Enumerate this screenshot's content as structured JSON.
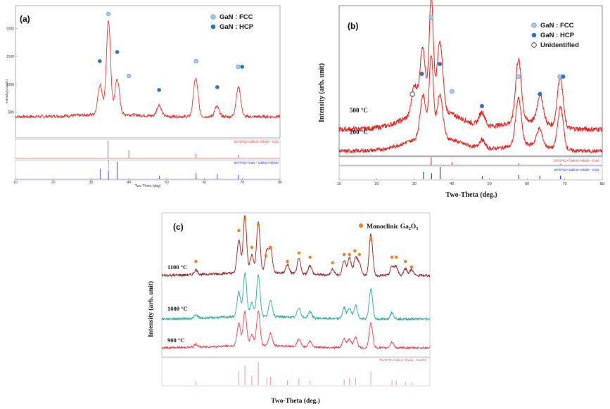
{
  "panels": {
    "a": {
      "label": "(a)",
      "header_text": "",
      "ylabel": "Intensity(Counts)",
      "xlabel": "Two-Theta (deg)",
      "y_ticks": [
        "500",
        "1000",
        "1500",
        "2000"
      ],
      "x_ticks": [
        "10",
        "20",
        "30",
        "40",
        "50",
        "60",
        "70",
        "80"
      ],
      "legend": [
        {
          "label": "GaN : FCC",
          "marker": "open-circle"
        },
        {
          "label": "GaN : HCP",
          "marker": "filled-circle"
        }
      ],
      "ref_labels": [
        "52-0791> Gallium Nitride - GaN",
        "50-0792> GaN - Gallium Nitride"
      ]
    },
    "b": {
      "label": "(b)",
      "ylabel": "Intensity (arb. unit)",
      "xlabel": "Two-Theta (deg.)",
      "x_ticks": [
        "10",
        "20",
        "30",
        "40",
        "50",
        "60",
        "70",
        "80"
      ],
      "series_labels": [
        "500 °C",
        "200 °C"
      ],
      "legend": [
        {
          "label": "GaN : FCC",
          "marker": "open-circle"
        },
        {
          "label": "GaN : HCP",
          "marker": "filled-circle"
        },
        {
          "label": "Unidentified",
          "marker": "hollow-circle"
        }
      ],
      "ref_labels": [
        "52-0791> Gallium Nitride - GaN",
        "50-0792> Gallium Nitride - GaN"
      ]
    },
    "c": {
      "label": "(c)",
      "ylabel": "Intensity (arb. unit)",
      "xlabel": "Two-Theta (deg.)",
      "series_labels": [
        "1100 °C",
        "1000 °C",
        "900 °C"
      ],
      "legend": [
        {
          "label_main": "Monoclinic Ga",
          "sub1": "2",
          "mid": "O",
          "sub2": "3",
          "marker": "orange-dot"
        }
      ],
      "ref_labels": [
        "76-0573> Gallium Oxide - Ga2O3"
      ]
    }
  },
  "colors": {
    "trace_red": "#e02020",
    "trace_darkred": "#8b1a1a",
    "trace_teal": "#2aa59a",
    "trace_pink": "#d9424a",
    "fcc_marker": "#a8c8ee",
    "hcp_marker": "#2f6fb8",
    "ga2o3_marker": "#f07b1d",
    "ref_red": "#e03030",
    "ref_blue": "#1a2ad0",
    "ref_pink": "#f0a0a8"
  },
  "chart_data": [
    {
      "type": "line",
      "panel": "a",
      "xlim": [
        10,
        80
      ],
      "ylim": [
        0,
        2200
      ],
      "x_axis_label": "Two-Theta (deg)",
      "y_axis_label": "Intensity(Counts)",
      "series": [
        {
          "peaks": [
            [
              32.4,
              950
            ],
            [
              34.6,
              2100
            ],
            [
              36.9,
              1050
            ],
            [
              48.0,
              620
            ],
            [
              57.7,
              1100
            ],
            [
              63.3,
              600
            ],
            [
              69.0,
              950
            ]
          ],
          "baseline": 420
        }
      ],
      "markers": [
        {
          "x": 34.6,
          "type": "fcc"
        },
        {
          "x": 32.3,
          "type": "hcp"
        },
        {
          "x": 36.9,
          "type": "hcp"
        },
        {
          "x": 40.0,
          "type": "fcc"
        },
        {
          "x": 48.0,
          "type": "hcp"
        },
        {
          "x": 57.8,
          "type": "fcc"
        },
        {
          "x": 63.4,
          "type": "hcp"
        },
        {
          "x": 68.9,
          "type": "fcc"
        },
        {
          "x": 70.0,
          "type": "hcp"
        }
      ],
      "references": [
        {
          "label": "52-0791> Gallium Nitride - GaN",
          "color": "red",
          "lines": [
            [
              34.5,
              1.0
            ],
            [
              40.0,
              0.45
            ],
            [
              57.8,
              0.25
            ],
            [
              69.0,
              0.2
            ]
          ]
        },
        {
          "label": "50-0792> GaN - Gallium Nitride",
          "color": "blue",
          "lines": [
            [
              32.4,
              0.6
            ],
            [
              34.6,
              0.45
            ],
            [
              36.9,
              1.0
            ],
            [
              48.1,
              0.2
            ],
            [
              57.8,
              0.35
            ],
            [
              63.4,
              0.3
            ],
            [
              68.9,
              0.25
            ]
          ]
        }
      ]
    },
    {
      "type": "line",
      "panel": "b",
      "xlim": [
        10,
        80
      ],
      "x_axis_label": "Two-Theta (deg.)",
      "y_axis_label": "Intensity (arb. unit)",
      "series": [
        {
          "name": "500 °C",
          "peaks": [
            [
              30.0,
              0.25
            ],
            [
              32.2,
              0.55
            ],
            [
              34.5,
              1.0
            ],
            [
              36.8,
              0.6
            ],
            [
              48.0,
              0.12
            ],
            [
              57.7,
              0.55
            ],
            [
              63.5,
              0.25
            ],
            [
              68.8,
              0.45
            ]
          ]
        },
        {
          "name": "200 °C",
          "peaks": [
            [
              32.3,
              0.5
            ],
            [
              34.5,
              0.95
            ],
            [
              36.8,
              0.5
            ],
            [
              48.0,
              0.1
            ],
            [
              57.7,
              0.55
            ],
            [
              63.3,
              0.2
            ],
            [
              68.9,
              0.5
            ]
          ]
        }
      ],
      "markers": [
        {
          "x": 34.5,
          "type": "fcc"
        },
        {
          "x": 32.0,
          "type": "hcp"
        },
        {
          "x": 36.8,
          "type": "hcp"
        },
        {
          "x": 29.5,
          "type": "unidentified"
        },
        {
          "x": 40.0,
          "type": "fcc"
        },
        {
          "x": 48.0,
          "type": "hcp"
        },
        {
          "x": 57.7,
          "type": "fcc"
        },
        {
          "x": 63.4,
          "type": "hcp"
        },
        {
          "x": 68.7,
          "type": "fcc"
        },
        {
          "x": 69.6,
          "type": "hcp"
        }
      ],
      "references": [
        {
          "label": "52-0791> Gallium Nitride - GaN",
          "color": "red",
          "lines": [
            [
              34.5,
              1.0
            ],
            [
              40.0,
              0.4
            ],
            [
              57.8,
              0.25
            ],
            [
              69.0,
              0.2
            ]
          ]
        },
        {
          "label": "50-0792> Gallium Nitride - GaN",
          "color": "blue",
          "lines": [
            [
              32.4,
              0.6
            ],
            [
              34.6,
              0.5
            ],
            [
              36.9,
              1.0
            ],
            [
              48.1,
              0.25
            ],
            [
              57.8,
              0.35
            ],
            [
              63.4,
              0.3
            ],
            [
              68.9,
              0.3
            ]
          ]
        }
      ]
    },
    {
      "type": "line",
      "panel": "c",
      "xlim": [
        10,
        80
      ],
      "x_axis_label": "Two-Theta (deg.)",
      "y_axis_label": "Intensity (arb. unit)",
      "series": [
        {
          "name": "1100 °C",
          "peaks": [
            [
              18.9,
              0.08
            ],
            [
              30.1,
              0.55
            ],
            [
              31.7,
              0.95
            ],
            [
              33.5,
              0.3
            ],
            [
              35.2,
              0.85
            ],
            [
              37.4,
              0.35
            ],
            [
              38.4,
              0.4
            ],
            [
              42.8,
              0.15
            ],
            [
              45.8,
              0.25
            ],
            [
              48.7,
              0.15
            ],
            [
              54.6,
              0.1
            ],
            [
              57.6,
              0.25
            ],
            [
              59.0,
              0.3
            ],
            [
              60.6,
              0.3
            ],
            [
              61.6,
              0.2
            ],
            [
              64.6,
              0.7
            ],
            [
              70.1,
              0.15
            ],
            [
              71.2,
              0.15
            ],
            [
              73.6,
              0.12
            ],
            [
              75.2,
              0.1
            ]
          ]
        },
        {
          "name": "1000 °C",
          "peaks": [
            [
              18.9,
              0.06
            ],
            [
              30.1,
              0.45
            ],
            [
              31.7,
              0.8
            ],
            [
              33.5,
              0.25
            ],
            [
              35.2,
              0.75
            ],
            [
              38.4,
              0.3
            ],
            [
              45.8,
              0.18
            ],
            [
              48.7,
              0.12
            ],
            [
              57.6,
              0.2
            ],
            [
              59.0,
              0.2
            ],
            [
              60.6,
              0.25
            ],
            [
              64.6,
              0.55
            ],
            [
              70.1,
              0.12
            ]
          ]
        },
        {
          "name": "900 °C",
          "peaks": [
            [
              18.9,
              0.06
            ],
            [
              30.1,
              0.45
            ],
            [
              31.7,
              0.7
            ],
            [
              33.5,
              0.22
            ],
            [
              35.2,
              0.7
            ],
            [
              38.4,
              0.25
            ],
            [
              45.8,
              0.15
            ],
            [
              48.7,
              0.12
            ],
            [
              57.6,
              0.18
            ],
            [
              59.0,
              0.18
            ],
            [
              60.6,
              0.22
            ],
            [
              64.6,
              0.5
            ],
            [
              70.1,
              0.12
            ]
          ]
        }
      ],
      "markers": [
        18.9,
        30.1,
        31.7,
        33.5,
        35.2,
        37.2,
        38.4,
        42.8,
        45.8,
        48.7,
        54.6,
        57.6,
        59.0,
        60.4,
        61.6,
        64.6,
        70.1,
        71.2,
        73.6,
        75.2
      ],
      "references": [
        {
          "label": "76-0573> Gallium Oxide - Ga2O3",
          "color": "pink",
          "lines": [
            [
              18.9,
              0.15
            ],
            [
              30.1,
              0.6
            ],
            [
              31.7,
              0.85
            ],
            [
              33.5,
              0.4
            ],
            [
              35.2,
              1.0
            ],
            [
              37.4,
              0.3
            ],
            [
              38.4,
              0.35
            ],
            [
              42.8,
              0.2
            ],
            [
              45.8,
              0.3
            ],
            [
              48.7,
              0.2
            ],
            [
              57.6,
              0.25
            ],
            [
              59.0,
              0.3
            ],
            [
              60.6,
              0.3
            ],
            [
              64.6,
              0.6
            ],
            [
              70.1,
              0.2
            ],
            [
              71.2,
              0.2
            ],
            [
              73.6,
              0.15
            ],
            [
              75.2,
              0.12
            ]
          ]
        }
      ]
    }
  ]
}
